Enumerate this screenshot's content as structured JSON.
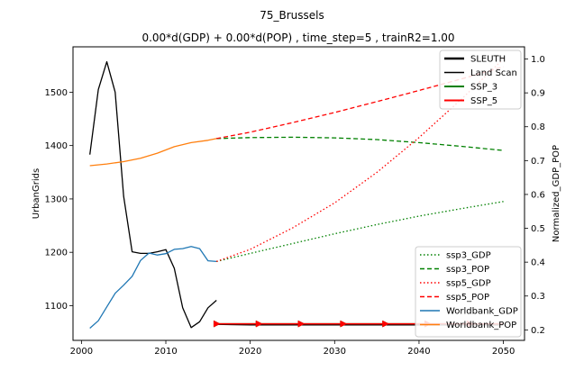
{
  "chart_data": {
    "type": "line",
    "title": "75_Brussels",
    "subtitle": "0.00*d(GDP) + 0.00*d(POP) , time_step=5 , trainR2=1.00",
    "xlabel": "",
    "ylabel": "UrbanGrids",
    "y2label": "Normalized_GDP_POP",
    "xlim": [
      1999,
      2052.5
    ],
    "ylim": [
      1035,
      1585
    ],
    "y2lim": [
      0.169,
      1.036
    ],
    "xticks": [
      2000,
      2010,
      2020,
      2030,
      2040,
      2050
    ],
    "yticks": [
      1100,
      1200,
      1300,
      1400,
      1500
    ],
    "y2ticks": [
      0.2,
      0.3,
      0.4,
      0.5,
      0.6,
      0.7,
      0.8,
      0.9,
      1.0
    ],
    "xtick_labels": [
      "2000",
      "2010",
      "2020",
      "2030",
      "2040",
      "2050"
    ],
    "ytick_labels": [
      "1100",
      "1200",
      "1300",
      "1400",
      "1500"
    ],
    "y2tick_labels": [
      "0.2",
      "0.3",
      "0.4",
      "0.5",
      "0.6",
      "0.7",
      "0.8",
      "0.9",
      "1.0"
    ],
    "legend_left": {
      "placement": "top-right",
      "entries": [
        {
          "name": "SLEUTH",
          "color": "#000000",
          "style": "solid",
          "width": 2.5
        },
        {
          "name": "Land Scan",
          "color": "#000000",
          "style": "solid",
          "width": 1.5
        },
        {
          "name": "SSP_3",
          "color": "#008000",
          "style": "solid",
          "width": 2
        },
        {
          "name": "SSP_5",
          "color": "#ff0000",
          "style": "solid",
          "width": 2
        }
      ]
    },
    "legend_right": {
      "placement": "lower-right",
      "entries": [
        {
          "name": "ssp3_GDP",
          "color": "#008000",
          "style": "dotted"
        },
        {
          "name": "ssp3_POP",
          "color": "#008000",
          "style": "dashed"
        },
        {
          "name": "ssp5_GDP",
          "color": "#ff0000",
          "style": "dotted"
        },
        {
          "name": "ssp5_POP",
          "color": "#ff0000",
          "style": "dashed"
        },
        {
          "name": "Worldbank_GDP",
          "color": "#1f77b4",
          "style": "solid"
        },
        {
          "name": "Worldbank_POP",
          "color": "#ff7f0e",
          "style": "solid"
        }
      ]
    },
    "series": [
      {
        "name": "Land Scan",
        "axis": "left",
        "color": "#000000",
        "style": "solid",
        "width": 1.3,
        "x": [
          2001,
          2002,
          2003,
          2004,
          2005,
          2006,
          2007,
          2008,
          2009,
          2010,
          2011,
          2012,
          2013,
          2014,
          2015,
          2016
        ],
        "y": [
          1383,
          1505,
          1557,
          1500,
          1305,
          1201,
          1198,
          1198,
          1201,
          1205,
          1170,
          1096,
          1059,
          1070,
          1096,
          1110
        ]
      },
      {
        "name": "SLEUTH",
        "axis": "left",
        "color": "#000000",
        "style": "solid",
        "width": 1.3,
        "x": [
          2016,
          2020,
          2025,
          2030,
          2035,
          2040,
          2045,
          2050
        ],
        "y": [
          1065,
          1064,
          1064,
          1064,
          1064,
          1064,
          1064,
          1064
        ]
      },
      {
        "name": "SSP_3",
        "axis": "left",
        "color": "#008000",
        "style": "solid",
        "width": 1.5,
        "x": [
          2016,
          2021,
          2026,
          2031,
          2036,
          2041,
          2046,
          2050
        ],
        "y": [
          1066,
          1066,
          1066,
          1066,
          1066,
          1066,
          1066,
          1066
        ],
        "markers": [
          2016,
          2021,
          2026,
          2031,
          2036,
          2041,
          2046
        ]
      },
      {
        "name": "SSP_5",
        "axis": "left",
        "color": "#ff0000",
        "style": "solid",
        "width": 1.5,
        "x": [
          2016,
          2021,
          2026,
          2031,
          2036,
          2041,
          2046,
          2050
        ],
        "y": [
          1066,
          1066,
          1066,
          1066,
          1066,
          1066,
          1066,
          1066
        ],
        "markers": [
          2016,
          2021,
          2026,
          2031,
          2036,
          2041,
          2046
        ]
      },
      {
        "name": "Worldbank_GDP",
        "axis": "right",
        "color": "#1f77b4",
        "style": "solid",
        "width": 1.3,
        "x": [
          2001,
          2002,
          2003,
          2004,
          2005,
          2006,
          2007,
          2008,
          2009,
          2010,
          2011,
          2012,
          2013,
          2014,
          2015,
          2016
        ],
        "y": [
          0.205,
          0.227,
          0.268,
          0.308,
          0.332,
          0.358,
          0.405,
          0.427,
          0.421,
          0.425,
          0.438,
          0.44,
          0.446,
          0.44,
          0.404,
          0.402
        ]
      },
      {
        "name": "Worldbank_POP",
        "axis": "right",
        "color": "#ff7f0e",
        "style": "solid",
        "width": 1.3,
        "x": [
          2001,
          2003,
          2005,
          2007,
          2009,
          2011,
          2013,
          2015,
          2016
        ],
        "y": [
          0.685,
          0.69,
          0.697,
          0.707,
          0.722,
          0.741,
          0.753,
          0.76,
          0.765
        ]
      },
      {
        "name": "ssp3_GDP",
        "axis": "right",
        "color": "#008000",
        "style": "dotted",
        "width": 1.3,
        "x": [
          2016,
          2020,
          2025,
          2030,
          2035,
          2040,
          2045,
          2050
        ],
        "y": [
          0.402,
          0.426,
          0.455,
          0.484,
          0.511,
          0.536,
          0.558,
          0.579
        ]
      },
      {
        "name": "ssp3_POP",
        "axis": "right",
        "color": "#008000",
        "style": "dashed",
        "width": 1.3,
        "x": [
          2016,
          2020,
          2025,
          2030,
          2035,
          2040,
          2045,
          2050
        ],
        "y": [
          0.765,
          0.768,
          0.769,
          0.767,
          0.762,
          0.753,
          0.742,
          0.73
        ]
      },
      {
        "name": "ssp5_GDP",
        "axis": "right",
        "color": "#ff0000",
        "style": "dotted",
        "width": 1.3,
        "x": [
          2016,
          2020,
          2025,
          2030,
          2035,
          2040,
          2045,
          2050
        ],
        "y": [
          0.402,
          0.438,
          0.501,
          0.575,
          0.665,
          0.768,
          0.881,
          1.0
        ]
      },
      {
        "name": "ssp5_POP",
        "axis": "right",
        "color": "#ff0000",
        "style": "dashed",
        "width": 1.3,
        "x": [
          2016,
          2020,
          2025,
          2030,
          2035,
          2040,
          2045,
          2050
        ],
        "y": [
          0.765,
          0.784,
          0.812,
          0.842,
          0.874,
          0.907,
          0.941,
          0.977
        ]
      }
    ]
  }
}
